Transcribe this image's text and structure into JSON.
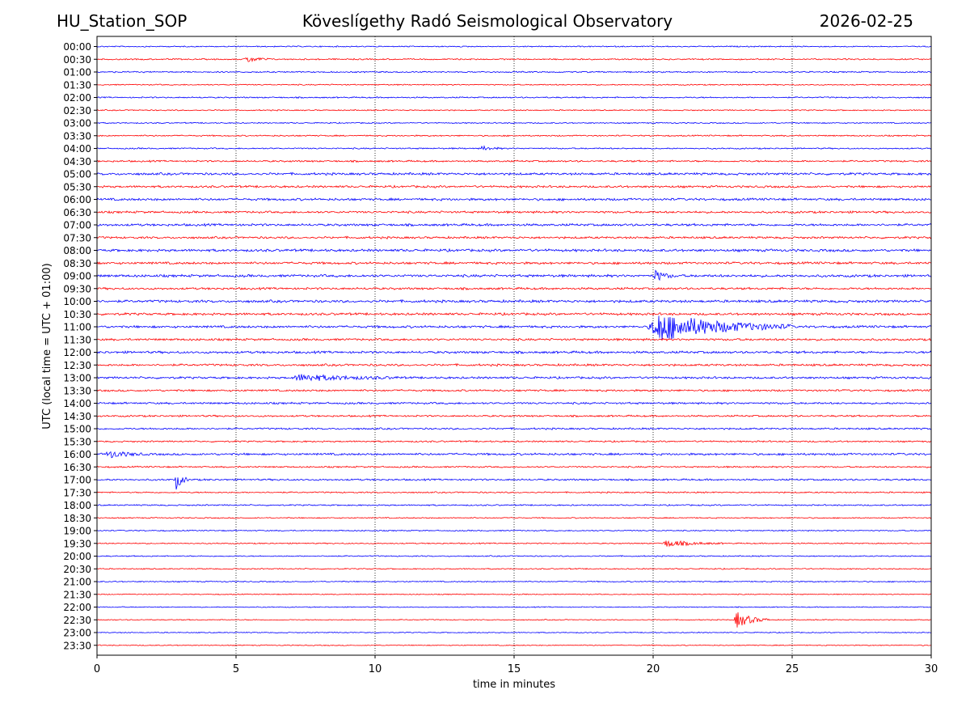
{
  "header": {
    "station": "HU_Station_SOP",
    "observatory": "Köveslígethy Radó Seismological Observatory",
    "date": "2026-02-25"
  },
  "chart_data": {
    "type": "line",
    "title": "Köveslígethy Radó Seismological Observatory",
    "xlabel": "time in minutes",
    "ylabel": "UTC (local time = UTC + 01:00)",
    "xlim": [
      0,
      30
    ],
    "x_ticks": [
      0,
      5,
      10,
      15,
      20,
      25,
      30
    ],
    "grid": "vertical dotted lines at each x tick",
    "row_labels": [
      "00:00",
      "00:30",
      "01:00",
      "01:30",
      "02:00",
      "02:30",
      "03:00",
      "03:30",
      "04:00",
      "04:30",
      "05:00",
      "05:30",
      "06:00",
      "06:30",
      "07:00",
      "07:30",
      "08:00",
      "08:30",
      "09:00",
      "09:30",
      "10:00",
      "10:30",
      "11:00",
      "11:30",
      "12:00",
      "12:30",
      "13:00",
      "13:30",
      "14:00",
      "14:30",
      "15:00",
      "15:30",
      "16:00",
      "16:30",
      "17:00",
      "17:30",
      "18:00",
      "18:30",
      "19:00",
      "19:30",
      "20:00",
      "20:30",
      "21:00",
      "21:30",
      "22:00",
      "22:30",
      "23:00",
      "23:30"
    ],
    "colors": [
      "#0000ff",
      "#ff0000"
    ],
    "noise_level": [
      0.3,
      0.35,
      0.35,
      0.3,
      0.35,
      0.3,
      0.3,
      0.35,
      0.35,
      0.45,
      0.6,
      0.55,
      0.6,
      0.55,
      0.6,
      0.55,
      0.65,
      0.6,
      0.65,
      0.55,
      0.65,
      0.6,
      0.6,
      0.55,
      0.6,
      0.55,
      0.55,
      0.5,
      0.5,
      0.45,
      0.45,
      0.4,
      0.55,
      0.4,
      0.45,
      0.35,
      0.35,
      0.3,
      0.3,
      0.3,
      0.3,
      0.3,
      0.3,
      0.25,
      0.25,
      0.25,
      0.25,
      0.25
    ],
    "events": [
      {
        "row": "00:30",
        "start_min": 5.3,
        "end_min": 6.3,
        "amplitude": 2.0
      },
      {
        "row": "04:00",
        "start_min": 13.8,
        "end_min": 14.6,
        "amplitude": 1.4
      },
      {
        "row": "09:00",
        "start_min": 20.0,
        "end_min": 20.8,
        "amplitude": 3.5
      },
      {
        "row": "11:00",
        "start_min": 19.8,
        "end_min": 25.0,
        "amplitude": 9.0
      },
      {
        "row": "13:00",
        "start_min": 7.0,
        "end_min": 11.0,
        "amplitude": 2.0
      },
      {
        "row": "16:00",
        "start_min": 0.3,
        "end_min": 1.8,
        "amplitude": 2.2
      },
      {
        "row": "17:00",
        "start_min": 2.8,
        "end_min": 3.3,
        "amplitude": 6.0
      },
      {
        "row": "19:30",
        "start_min": 20.3,
        "end_min": 22.5,
        "amplitude": 2.0
      },
      {
        "row": "22:30",
        "start_min": 22.9,
        "end_min": 24.2,
        "amplitude": 5.0
      }
    ]
  }
}
